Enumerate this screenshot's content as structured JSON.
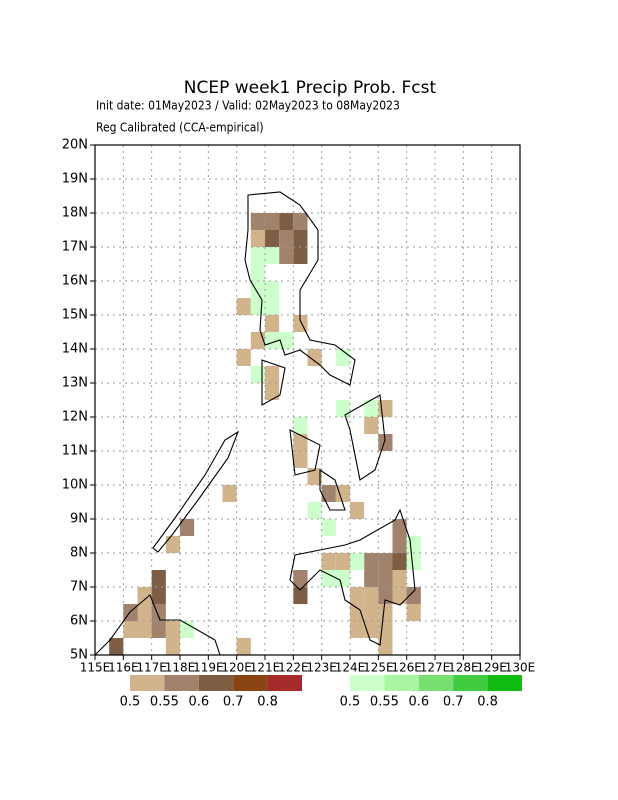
{
  "map": {
    "title": "NCEP week1 Precip Prob. Fcst",
    "subtitle": "Init date: 01May2023 / Valid: 02May2023 to 08May2023",
    "method": "Reg Calibrated (CCA-empirical)",
    "xlim": [
      115,
      130
    ],
    "ylim": [
      5,
      20
    ],
    "cell": 0.5,
    "xticks": [
      {
        "value": 115,
        "label": "115E"
      },
      {
        "value": 116,
        "label": "116E"
      },
      {
        "value": 117,
        "label": "117E"
      },
      {
        "value": 118,
        "label": "118E"
      },
      {
        "value": 119,
        "label": "119E"
      },
      {
        "value": 120,
        "label": "120E"
      },
      {
        "value": 121,
        "label": "121E"
      },
      {
        "value": 122,
        "label": "122E"
      },
      {
        "value": 123,
        "label": "123E"
      },
      {
        "value": 124,
        "label": "124E"
      },
      {
        "value": 125,
        "label": "125E"
      },
      {
        "value": 126,
        "label": "126E"
      },
      {
        "value": 127,
        "label": "127E"
      },
      {
        "value": 128,
        "label": "128E"
      },
      {
        "value": 129,
        "label": "129E"
      },
      {
        "value": 130,
        "label": "130E"
      }
    ],
    "yticks": [
      {
        "value": 5,
        "label": "5N"
      },
      {
        "value": 6,
        "label": "6N"
      },
      {
        "value": 7,
        "label": "7N"
      },
      {
        "value": 8,
        "label": "8N"
      },
      {
        "value": 9,
        "label": "9N"
      },
      {
        "value": 10,
        "label": "10N"
      },
      {
        "value": 11,
        "label": "11N"
      },
      {
        "value": 12,
        "label": "12N"
      },
      {
        "value": 13,
        "label": "13N"
      },
      {
        "value": 14,
        "label": "14N"
      },
      {
        "value": 15,
        "label": "15N"
      },
      {
        "value": 16,
        "label": "16N"
      },
      {
        "value": 17,
        "label": "17N"
      },
      {
        "value": 18,
        "label": "18N"
      },
      {
        "value": 19,
        "label": "19N"
      },
      {
        "value": 20,
        "label": "20N"
      }
    ],
    "grid": true,
    "below": {
      "colors": [
        "#d2b48c",
        "#a0826d",
        "#7d5e45",
        "#8b4513",
        "#a52a2a"
      ],
      "levels": [
        0.5,
        0.55,
        0.6,
        0.7,
        0.8
      ],
      "cells": [
        [
          120.5,
          17.5,
          0.55
        ],
        [
          121,
          17.5,
          0.55
        ],
        [
          121.5,
          17.5,
          0.6
        ],
        [
          122,
          17.5,
          0.55
        ],
        [
          120.5,
          17,
          0.5
        ],
        [
          121,
          17,
          0.6
        ],
        [
          121.5,
          17,
          0.55
        ],
        [
          122,
          17,
          0.6
        ],
        [
          121.5,
          16.5,
          0.55
        ],
        [
          122,
          16.5,
          0.6
        ],
        [
          120,
          15,
          0.5
        ],
        [
          121,
          14.5,
          0.5
        ],
        [
          120.5,
          14,
          0.5
        ],
        [
          122,
          14.5,
          0.5
        ],
        [
          122.5,
          13.5,
          0.5
        ],
        [
          120,
          13.5,
          0.5
        ],
        [
          121,
          13,
          0.5
        ],
        [
          121,
          12.5,
          0.5
        ],
        [
          122,
          11,
          0.5
        ],
        [
          122,
          10.5,
          0.5
        ],
        [
          122.5,
          10,
          0.5
        ],
        [
          123,
          9.5,
          0.55
        ],
        [
          123.5,
          9.5,
          0.5
        ],
        [
          124,
          9,
          0.5
        ],
        [
          124.5,
          11.5,
          0.5
        ],
        [
          125,
          11,
          0.55
        ],
        [
          125,
          12,
          0.5
        ],
        [
          123,
          7.5,
          0.5
        ],
        [
          123.5,
          7.5,
          0.5
        ],
        [
          124.5,
          7.5,
          0.55
        ],
        [
          124.5,
          7,
          0.55
        ],
        [
          125,
          7.5,
          0.55
        ],
        [
          125,
          7,
          0.55
        ],
        [
          125,
          6.5,
          0.55
        ],
        [
          125.5,
          8.5,
          0.55
        ],
        [
          125.5,
          8,
          0.55
        ],
        [
          125.5,
          7.5,
          0.6
        ],
        [
          125.5,
          7,
          0.5
        ],
        [
          125.5,
          6.5,
          0.5
        ],
        [
          124,
          6.5,
          0.5
        ],
        [
          124,
          6,
          0.5
        ],
        [
          124,
          5.5,
          0.5
        ],
        [
          124.5,
          6.5,
          0.5
        ],
        [
          124.5,
          6,
          0.5
        ],
        [
          124.5,
          5.5,
          0.5
        ],
        [
          125,
          6,
          0.5
        ],
        [
          125,
          5.5,
          0.5
        ],
        [
          125,
          5,
          0.5
        ],
        [
          126,
          6.5,
          0.55
        ],
        [
          126,
          6,
          0.5
        ],
        [
          122,
          7,
          0.55
        ],
        [
          122,
          6.5,
          0.6
        ],
        [
          116,
          6,
          0.55
        ],
        [
          116,
          5.5,
          0.5
        ],
        [
          116.5,
          6.5,
          0.5
        ],
        [
          116.5,
          6,
          0.5
        ],
        [
          116.5,
          5.5,
          0.5
        ],
        [
          117,
          7,
          0.6
        ],
        [
          117,
          6.5,
          0.6
        ],
        [
          117,
          6,
          0.55
        ],
        [
          117,
          5.5,
          0.55
        ],
        [
          117.5,
          5.5,
          0.5
        ],
        [
          117.5,
          5,
          0.5
        ],
        [
          118,
          8.5,
          0.55
        ],
        [
          117.5,
          8,
          0.5
        ],
        [
          119.5,
          9.5,
          0.5
        ],
        [
          115.5,
          5,
          0.6
        ],
        [
          120,
          5,
          0.5
        ]
      ]
    },
    "above": {
      "colors": [
        "#ccffcc",
        "#aaf5a0",
        "#77e070",
        "#3fcc3f",
        "#11bb11"
      ],
      "levels": [
        0.5,
        0.55,
        0.6,
        0.7,
        0.8
      ],
      "cells": [
        [
          120.5,
          16.5,
          0.5
        ],
        [
          121,
          16.5,
          0.5
        ],
        [
          120.5,
          16,
          0.5
        ],
        [
          120.5,
          15.5,
          0.5
        ],
        [
          121,
          15.5,
          0.5
        ],
        [
          120.5,
          15,
          0.5
        ],
        [
          121,
          15,
          0.5
        ],
        [
          121,
          14,
          0.5
        ],
        [
          121.5,
          14,
          0.5
        ],
        [
          120.5,
          13,
          0.5
        ],
        [
          124.5,
          12,
          0.5
        ],
        [
          122,
          11.5,
          0.5
        ],
        [
          122.5,
          9,
          0.5
        ],
        [
          123,
          8.5,
          0.5
        ],
        [
          123,
          7,
          0.5
        ],
        [
          123.5,
          7,
          0.5
        ],
        [
          124,
          7.5,
          0.5
        ],
        [
          126,
          8,
          0.5
        ],
        [
          126,
          7.5,
          0.5
        ],
        [
          118,
          5.5,
          0.5
        ],
        [
          123.5,
          13.5,
          0.5
        ],
        [
          123.5,
          12,
          0.5
        ]
      ]
    }
  }
}
